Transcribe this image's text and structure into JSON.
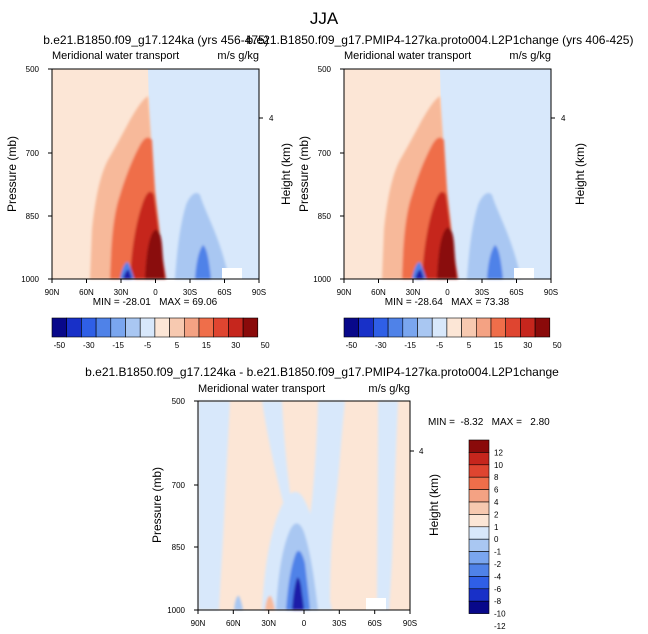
{
  "page_title": "JJA",
  "colors": {
    "neg_strong": "#1a1aa8",
    "neg_mid": "#4f82e8",
    "neg_light": "#a9c7f2",
    "neg_faint": "#d8e8fb",
    "pos_faint": "#fce6d6",
    "pos_light": "#f7b99a",
    "pos_mid": "#ef6e4a",
    "pos_strong": "#c6261d",
    "pos_max": "#8a0a0a",
    "frame": "#000000"
  },
  "chart_data": [
    {
      "type": "contour",
      "title": "b.e21.B1850.f09_g17.124ka (yrs 456-475)",
      "field_label": "Meridional water transport",
      "units": "m/s g/kg",
      "xlabel": "",
      "ylabel": "Pressure (mb)",
      "y2label": "Height (km)",
      "x_ticks": [
        "90N",
        "60N",
        "30N",
        "0",
        "30S",
        "60S",
        "90S"
      ],
      "y_ticks": [
        "500",
        "700",
        "850",
        "1000"
      ],
      "y_tick_values": [
        500,
        700,
        850,
        1000
      ],
      "y2_ticks": [
        "4"
      ],
      "ylim": [
        500,
        1000
      ],
      "min_max_text": "MIN = -28.01   MAX = 69.06",
      "min": -28.01,
      "max": 69.06
    },
    {
      "type": "contour",
      "title": "b.e21.B1850.f09_g17.PMIP4-127ka.proto004.L2P1change (yrs 406-425)",
      "field_label": "Meridional water transport",
      "units": "m/s g/kg",
      "xlabel": "",
      "ylabel": "Pressure (mb)",
      "y2label": "Height (km)",
      "x_ticks": [
        "90N",
        "60N",
        "30N",
        "0",
        "30S",
        "60S",
        "90S"
      ],
      "y_ticks": [
        "500",
        "700",
        "850",
        "1000"
      ],
      "y_tick_values": [
        500,
        700,
        850,
        1000
      ],
      "y2_ticks": [
        "4"
      ],
      "ylim": [
        500,
        1000
      ],
      "min_max_text": "MIN = -28.64   MAX = 73.38",
      "min": -28.64,
      "max": 73.38
    },
    {
      "type": "contour",
      "title": "b.e21.B1850.f09_g17.124ka - b.e21.B1850.f09_g17.PMIP4-127ka.proto004.L2P1change",
      "field_label": "Meridional water transport",
      "units": "m/s g/kg",
      "xlabel": "",
      "ylabel": "Pressure (mb)",
      "y2label": "Height (km)",
      "x_ticks": [
        "90N",
        "60N",
        "30N",
        "0",
        "30S",
        "60S",
        "90S"
      ],
      "y_ticks": [
        "500",
        "700",
        "850",
        "1000"
      ],
      "y_tick_values": [
        500,
        700,
        850,
        1000
      ],
      "y2_ticks": [
        "4"
      ],
      "ylim": [
        500,
        1000
      ],
      "min_max_text": "MIN =  -8.32   MAX =   2.80",
      "min": -8.32,
      "max": 2.8
    }
  ],
  "colorbar_top": {
    "orientation": "horizontal",
    "labels": [
      "-50",
      "-30",
      "-15",
      "-5",
      "5",
      "15",
      "30",
      "50"
    ],
    "levels": [
      -50,
      -40,
      -30,
      -20,
      -15,
      -10,
      -5,
      0,
      5,
      10,
      15,
      20,
      30,
      40,
      50
    ]
  },
  "colorbar_diff": {
    "orientation": "vertical",
    "labels": [
      "12",
      "10",
      "8",
      "6",
      "4",
      "2",
      "1",
      "0",
      "-1",
      "-2",
      "-4",
      "-6",
      "-8",
      "-10",
      "-12"
    ],
    "levels": [
      12,
      10,
      8,
      6,
      4,
      2,
      1,
      0,
      -1,
      -2,
      -4,
      -6,
      -8,
      -10,
      -12
    ]
  }
}
